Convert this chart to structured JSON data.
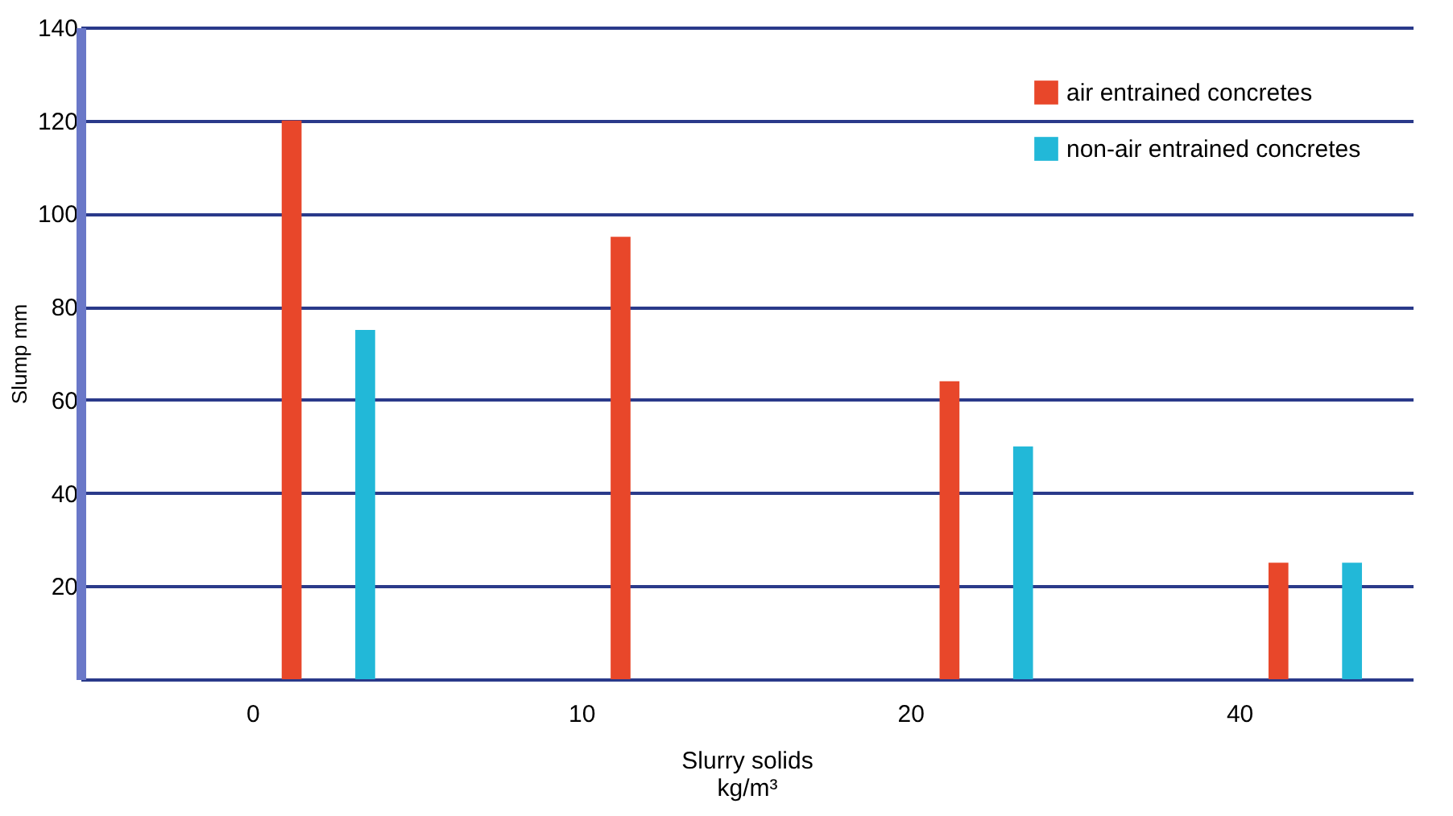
{
  "chart_data": {
    "type": "bar",
    "xlabel": "Slurry solids\nkg/m³",
    "ylabel": "Slump mm",
    "categories": [
      "0",
      "10",
      "20",
      "40"
    ],
    "series": [
      {
        "name": "air entrained concretes",
        "color": "#e8472a",
        "values": [
          120,
          95,
          64,
          25
        ]
      },
      {
        "name": "non-air entrained concretes",
        "color": "#22b8d8",
        "values": [
          75,
          null,
          50,
          25
        ]
      }
    ],
    "ylim": [
      0,
      140
    ],
    "yticks": [
      {
        "value": 0,
        "label": null
      },
      20,
      40,
      60,
      80,
      100,
      120,
      140
    ],
    "grid": "y",
    "legend": "top right"
  }
}
